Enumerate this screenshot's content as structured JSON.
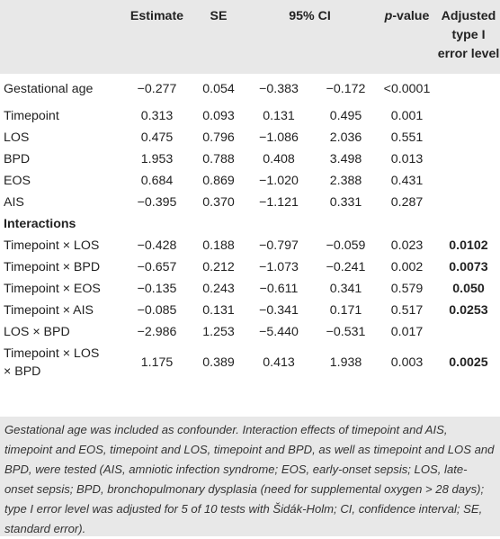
{
  "table": {
    "headers": {
      "estimate": "Estimate",
      "se": "SE",
      "ci": "95% CI",
      "pvalue_p": "p",
      "pvalue_rest": "-value",
      "adjusted_1": "Adjusted",
      "adjusted_2": "type I",
      "adjusted_3": "error level"
    },
    "rows_main": [
      {
        "label": "Gestational age",
        "estimate": "−0.277",
        "se": "0.054",
        "ci_low": "−0.383",
        "ci_high": "−0.172",
        "p": "<0.0001",
        "adj": ""
      },
      {
        "label": "Timepoint",
        "estimate": "0.313",
        "se": "0.093",
        "ci_low": "0.131",
        "ci_high": "0.495",
        "p": "0.001",
        "adj": ""
      },
      {
        "label": "LOS",
        "estimate": "0.475",
        "se": "0.796",
        "ci_low": "−1.086",
        "ci_high": "2.036",
        "p": "0.551",
        "adj": ""
      },
      {
        "label": "BPD",
        "estimate": "1.953",
        "se": "0.788",
        "ci_low": "0.408",
        "ci_high": "3.498",
        "p": "0.013",
        "adj": ""
      },
      {
        "label": "EOS",
        "estimate": "0.684",
        "se": "0.869",
        "ci_low": "−1.020",
        "ci_high": "2.388",
        "p": "0.431",
        "adj": ""
      },
      {
        "label": "AIS",
        "estimate": "−0.395",
        "se": "0.370",
        "ci_low": "−1.121",
        "ci_high": "0.331",
        "p": "0.287",
        "adj": ""
      }
    ],
    "section_label": "Interactions",
    "rows_interactions": [
      {
        "label": "Timepoint × LOS",
        "estimate": "−0.428",
        "se": "0.188",
        "ci_low": "−0.797",
        "ci_high": "−0.059",
        "p": "0.023",
        "adj": "0.0102"
      },
      {
        "label": "Timepoint × BPD",
        "estimate": "−0.657",
        "se": "0.212",
        "ci_low": "−1.073",
        "ci_high": "−0.241",
        "p": "0.002",
        "adj": "0.0073"
      },
      {
        "label": "Timepoint × EOS",
        "estimate": "−0.135",
        "se": "0.243",
        "ci_low": "−0.611",
        "ci_high": "0.341",
        "p": "0.579",
        "adj": "0.050"
      },
      {
        "label": "Timepoint × AIS",
        "estimate": "−0.085",
        "se": "0.131",
        "ci_low": "−0.341",
        "ci_high": "0.171",
        "p": "0.517",
        "adj": "0.0253"
      },
      {
        "label": "LOS × BPD",
        "estimate": "−2.986",
        "se": "1.253",
        "ci_low": "−5.440",
        "ci_high": "−0.531",
        "p": "0.017",
        "adj": ""
      }
    ],
    "last_row": {
      "label_1": "Timepoint × LOS",
      "label_2": "× BPD",
      "estimate": "1.175",
      "se": "0.389",
      "ci_low": "0.413",
      "ci_high": "1.938",
      "p": "0.003",
      "adj": "0.0025"
    }
  },
  "footnote": "Gestational age was included as confounder. Interaction effects of timepoint and AIS, timepoint and EOS, timepoint and LOS, timepoint and BPD, as well as timepoint and LOS and BPD, were tested (AIS, amniotic infection syndrome; EOS, early-onset sepsis; LOS, late-onset sepsis; BPD, bronchopulmonary dysplasia (need for supplemental oxygen > 28 days); type I error level was adjusted for 5 of 10 tests with Šidák-Holm; CI, confidence interval; SE, standard error).",
  "colors": {
    "header_bg": "#e8e8e8",
    "text": "#222222",
    "rule": "#bfbfbf"
  }
}
